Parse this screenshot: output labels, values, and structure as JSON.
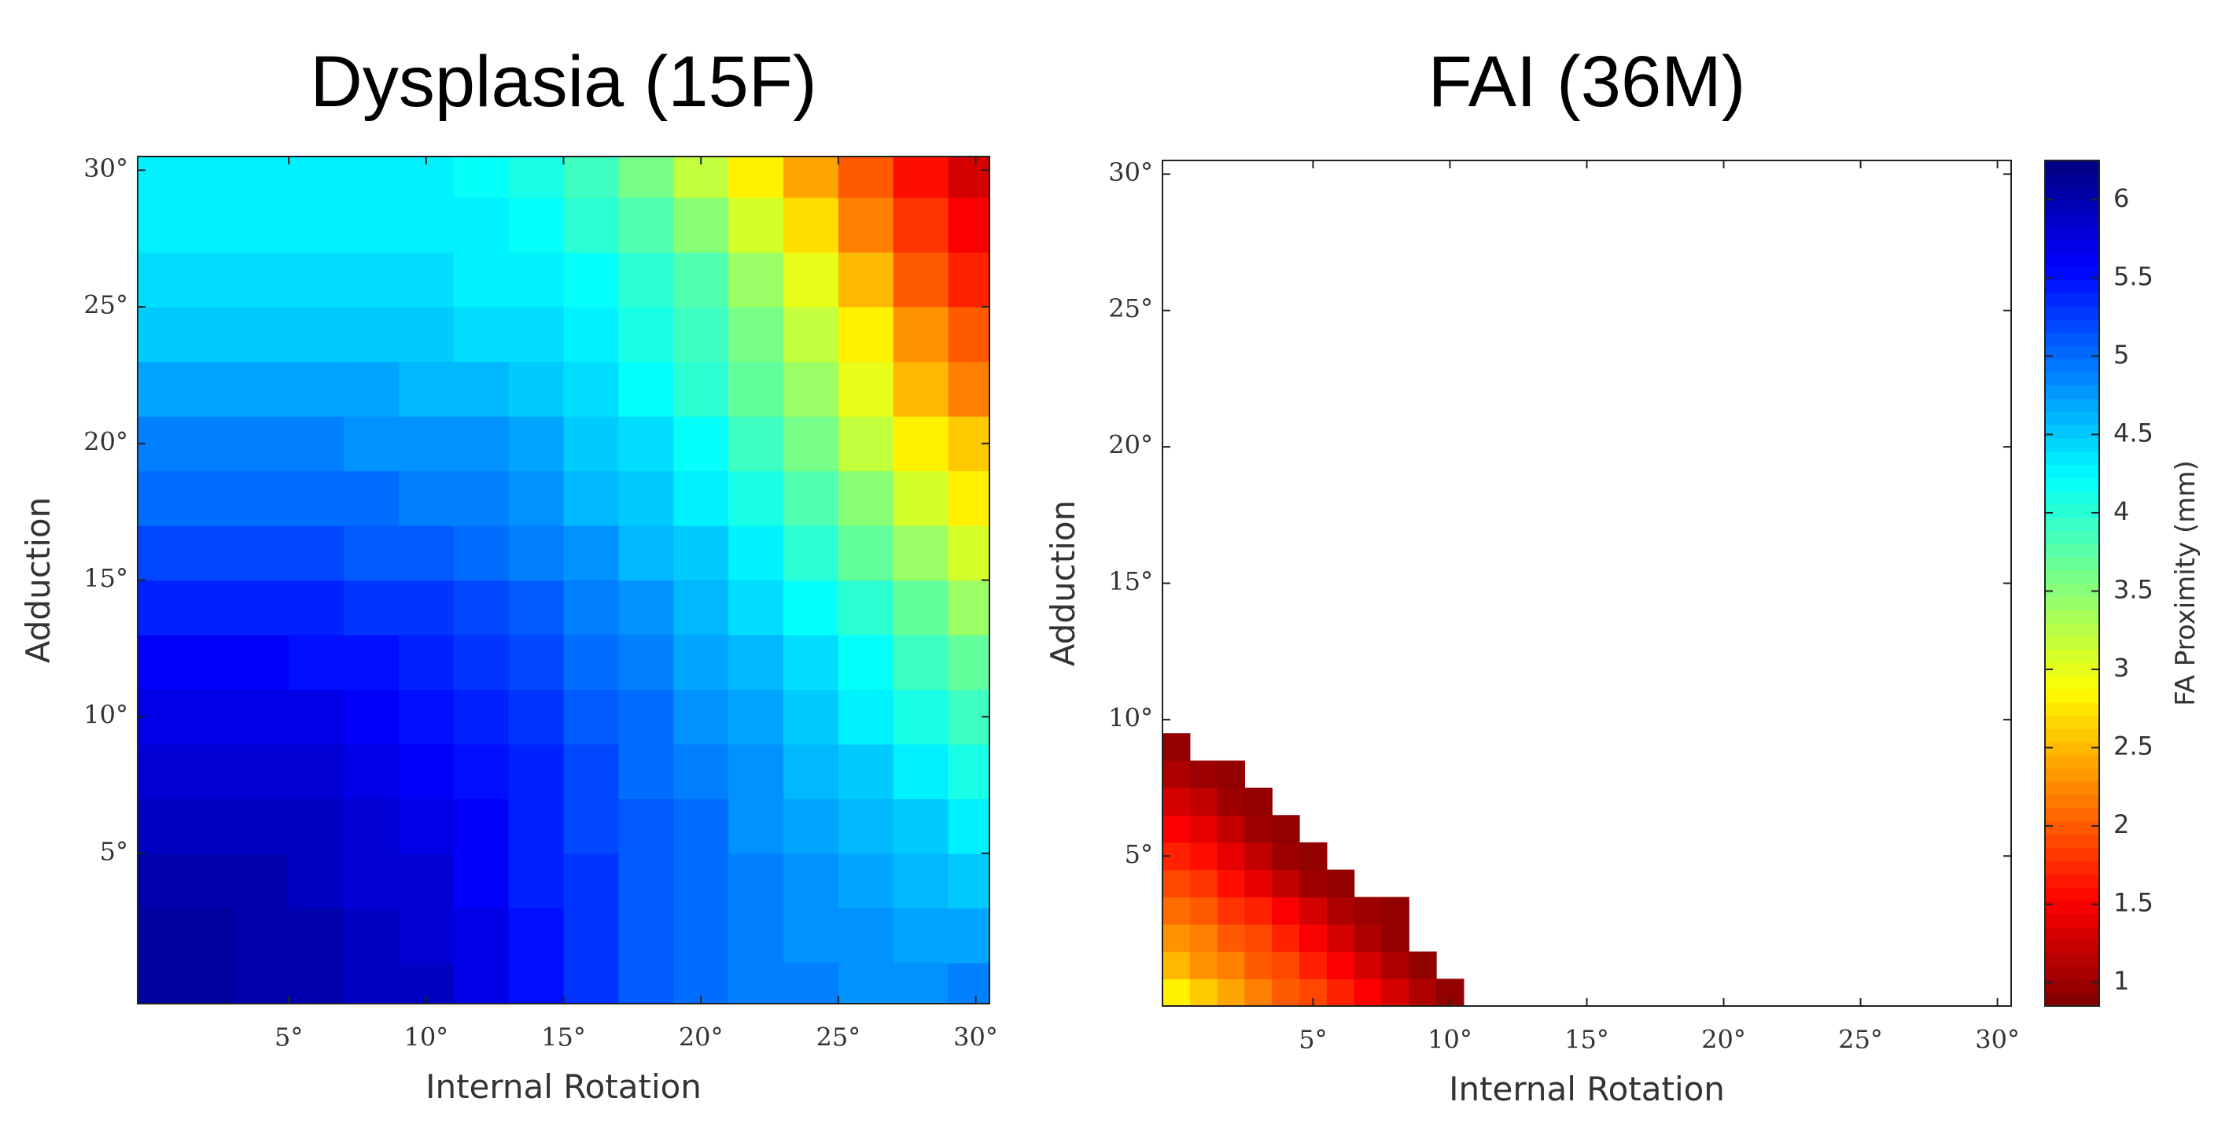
{
  "chart_data": [
    {
      "type": "heatmap",
      "title": "Dysplasia (15F)",
      "x_label": "Internal Rotation",
      "y_label": "Adduction",
      "colormap": "jet_r",
      "clim": [
        0.85,
        6.25
      ],
      "xlim": [
        -0.5,
        30.5
      ],
      "ylim": [
        -0.5,
        30.5
      ],
      "xticks": [
        {
          "value": 5,
          "label": "5°"
        },
        {
          "value": 10,
          "label": "10°"
        },
        {
          "value": 15,
          "label": "15°"
        },
        {
          "value": 20,
          "label": "20°"
        },
        {
          "value": 25,
          "label": "25°"
        },
        {
          "value": 30,
          "label": "30°"
        }
      ],
      "yticks": [
        {
          "value": 5,
          "label": "5°"
        },
        {
          "value": 10,
          "label": "10°"
        },
        {
          "value": 15,
          "label": "15°"
        },
        {
          "value": 20,
          "label": "20°"
        },
        {
          "value": 25,
          "label": "25°"
        },
        {
          "value": 30,
          "label": "30°"
        }
      ],
      "x": [
        0,
        2,
        4,
        6,
        8,
        10,
        12,
        14,
        16,
        18,
        20,
        22,
        24,
        26,
        28,
        30
      ],
      "y": [
        0,
        2,
        4,
        6,
        8,
        10,
        12,
        14,
        16,
        18,
        20,
        22,
        24,
        26,
        28,
        30
      ],
      "z": [
        [
          6.1,
          6.1,
          6.0,
          6.0,
          5.9,
          5.9,
          5.7,
          5.5,
          5.3,
          5.1,
          5.0,
          4.9,
          4.9,
          4.8,
          4.8,
          4.9
        ],
        [
          6.1,
          6.1,
          6.0,
          6.0,
          5.9,
          5.8,
          5.7,
          5.5,
          5.3,
          5.1,
          5.0,
          4.9,
          4.8,
          4.8,
          4.7,
          4.7
        ],
        [
          6.0,
          6.0,
          6.0,
          5.9,
          5.8,
          5.8,
          5.6,
          5.4,
          5.3,
          5.1,
          5.0,
          4.9,
          4.8,
          4.7,
          4.6,
          4.5
        ],
        [
          5.9,
          5.9,
          5.9,
          5.9,
          5.8,
          5.7,
          5.6,
          5.4,
          5.2,
          5.1,
          5.0,
          4.8,
          4.7,
          4.6,
          4.5,
          4.3
        ],
        [
          5.8,
          5.8,
          5.8,
          5.8,
          5.7,
          5.6,
          5.5,
          5.4,
          5.2,
          5.0,
          4.9,
          4.8,
          4.6,
          4.5,
          4.3,
          4.1
        ],
        [
          5.7,
          5.7,
          5.7,
          5.7,
          5.6,
          5.5,
          5.4,
          5.3,
          5.1,
          5.0,
          4.8,
          4.7,
          4.5,
          4.3,
          4.1,
          3.9
        ],
        [
          5.6,
          5.6,
          5.6,
          5.5,
          5.5,
          5.4,
          5.3,
          5.2,
          5.0,
          4.9,
          4.7,
          4.6,
          4.4,
          4.2,
          3.9,
          3.7
        ],
        [
          5.4,
          5.4,
          5.4,
          5.4,
          5.3,
          5.3,
          5.2,
          5.1,
          4.9,
          4.8,
          4.6,
          4.4,
          4.2,
          4.0,
          3.7,
          3.4
        ],
        [
          5.2,
          5.2,
          5.2,
          5.2,
          5.1,
          5.1,
          5.0,
          4.9,
          4.8,
          4.6,
          4.5,
          4.3,
          4.0,
          3.7,
          3.4,
          3.1
        ],
        [
          5.0,
          5.0,
          5.0,
          5.0,
          5.0,
          4.9,
          4.9,
          4.8,
          4.6,
          4.5,
          4.3,
          4.1,
          3.8,
          3.5,
          3.1,
          2.8
        ],
        [
          4.9,
          4.9,
          4.9,
          4.9,
          4.8,
          4.8,
          4.8,
          4.7,
          4.5,
          4.4,
          4.2,
          3.9,
          3.6,
          3.2,
          2.8,
          2.6
        ],
        [
          4.7,
          4.7,
          4.7,
          4.7,
          4.7,
          4.6,
          4.6,
          4.5,
          4.4,
          4.2,
          4.0,
          3.7,
          3.4,
          3.0,
          2.5,
          2.2
        ],
        [
          4.5,
          4.5,
          4.5,
          4.5,
          4.5,
          4.5,
          4.4,
          4.4,
          4.3,
          4.1,
          3.9,
          3.6,
          3.2,
          2.8,
          2.3,
          2.0
        ],
        [
          4.4,
          4.4,
          4.4,
          4.4,
          4.4,
          4.4,
          4.3,
          4.3,
          4.2,
          4.0,
          3.8,
          3.4,
          3.0,
          2.5,
          2.0,
          1.7
        ],
        [
          4.3,
          4.3,
          4.3,
          4.3,
          4.3,
          4.3,
          4.3,
          4.2,
          4.0,
          3.8,
          3.5,
          3.1,
          2.7,
          2.2,
          1.8,
          1.5
        ],
        [
          4.3,
          4.3,
          4.3,
          4.3,
          4.3,
          4.3,
          4.2,
          4.1,
          3.9,
          3.6,
          3.2,
          2.8,
          2.4,
          2.0,
          1.6,
          1.3
        ]
      ]
    },
    {
      "type": "heatmap",
      "title": "FAI (36M)",
      "x_label": "Internal Rotation",
      "y_label": "Adduction",
      "colormap": "jet_r",
      "clim": [
        0.85,
        6.25
      ],
      "colorbar_label": "FA Proximity (mm)",
      "colorbar_ticks": [
        1,
        1.5,
        2,
        2.5,
        3,
        3.5,
        4,
        4.5,
        5,
        5.5,
        6
      ],
      "xlim": [
        -0.5,
        30.5
      ],
      "ylim": [
        -0.5,
        30.5
      ],
      "xticks": [
        {
          "value": 5,
          "label": "5°"
        },
        {
          "value": 10,
          "label": "10°"
        },
        {
          "value": 15,
          "label": "15°"
        },
        {
          "value": 20,
          "label": "20°"
        },
        {
          "value": 25,
          "label": "25°"
        },
        {
          "value": 30,
          "label": "30°"
        }
      ],
      "yticks": [
        {
          "value": 5,
          "label": "5°"
        },
        {
          "value": 10,
          "label": "10°"
        },
        {
          "value": 15,
          "label": "15°"
        },
        {
          "value": 20,
          "label": "20°"
        },
        {
          "value": 25,
          "label": "25°"
        },
        {
          "value": 30,
          "label": "30°"
        }
      ],
      "x": [
        0,
        1,
        2,
        3,
        4,
        5,
        6,
        7,
        8,
        9,
        10
      ],
      "y": [
        0,
        1,
        2,
        3,
        4,
        5,
        6,
        7,
        8,
        9
      ],
      "z": [
        [
          2.8,
          2.6,
          2.4,
          2.2,
          2.0,
          1.9,
          1.7,
          1.5,
          1.3,
          1.1,
          0.95
        ],
        [
          2.5,
          2.3,
          2.2,
          2.0,
          1.9,
          1.7,
          1.5,
          1.3,
          1.1,
          0.95
        ],
        [
          2.3,
          2.2,
          2.0,
          1.9,
          1.7,
          1.5,
          1.3,
          1.1,
          0.95
        ],
        [
          2.1,
          2.0,
          1.8,
          1.7,
          1.5,
          1.3,
          1.1,
          1.0,
          0.95
        ],
        [
          1.9,
          1.8,
          1.6,
          1.4,
          1.2,
          1.0,
          0.95
        ],
        [
          1.7,
          1.6,
          1.4,
          1.2,
          1.0,
          0.95
        ],
        [
          1.5,
          1.4,
          1.2,
          1.0,
          0.95
        ],
        [
          1.3,
          1.2,
          1.0,
          0.95
        ],
        [
          1.1,
          1.0,
          0.95
        ],
        [
          0.95
        ]
      ]
    }
  ]
}
